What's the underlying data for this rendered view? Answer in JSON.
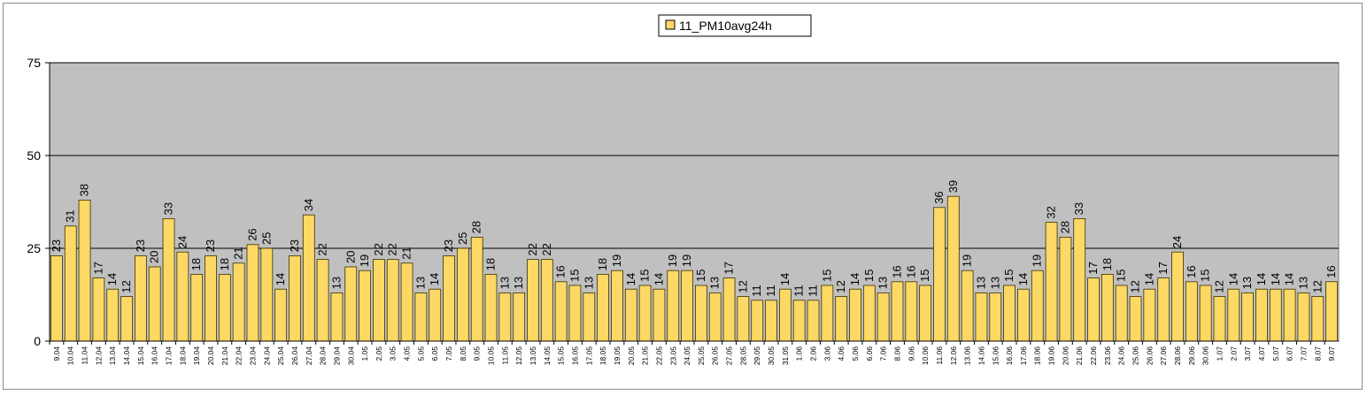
{
  "chart_data": {
    "type": "bar",
    "title": "",
    "xlabel": "",
    "ylabel": "",
    "ylim": [
      0,
      75
    ],
    "yticks": [
      0,
      25,
      50,
      75
    ],
    "grid": true,
    "legend_position": "top-center",
    "colors": {
      "bar_fill": "#FCD864",
      "bar_stroke": "#3a3000",
      "plot_bg": "#C0C0C0",
      "gridline": "#000000"
    },
    "categories": [
      "9.04",
      "10.04",
      "11.04",
      "12.04",
      "13.04",
      "14.04",
      "15.04",
      "16.04",
      "17.04",
      "18.04",
      "19.04",
      "20.04",
      "21.04",
      "22.04",
      "23.04",
      "24.04",
      "25.04",
      "26.04",
      "27.04",
      "28.04",
      "29.04",
      "30.04",
      "1.05",
      "2.05",
      "3.05",
      "4.05",
      "5.05",
      "6.05",
      "7.05",
      "8.05",
      "9.05",
      "10.05",
      "11.05",
      "12.05",
      "13.05",
      "14.05",
      "15.05",
      "16.05",
      "17.05",
      "18.05",
      "19.05",
      "20.05",
      "21.05",
      "22.05",
      "23.05",
      "24.05",
      "25.05",
      "26.05",
      "27.05",
      "28.05",
      "29.05",
      "30.05",
      "31.05",
      "1.06",
      "2.06",
      "3.06",
      "4.06",
      "5.06",
      "6.06",
      "7.06",
      "8.06",
      "9.06",
      "10.06",
      "11.06",
      "12.06",
      "13.06",
      "14.06",
      "15.06",
      "16.06",
      "17.06",
      "18.06",
      "19.06",
      "20.06",
      "21.06",
      "22.06",
      "23.06",
      "24.06",
      "25.06",
      "26.06",
      "27.06",
      "28.06",
      "29.06",
      "30.06",
      "1.07",
      "2.07",
      "3.07",
      "4.07",
      "5.07",
      "6.07",
      "7.07",
      "8.07",
      "9.07"
    ],
    "series": [
      {
        "name": "11_PM10avg24h",
        "values": [
          23,
          31,
          38,
          17,
          14,
          12,
          23,
          20,
          33,
          24,
          18,
          23,
          18,
          21,
          26,
          25,
          14,
          23,
          34,
          22,
          13,
          20,
          19,
          22,
          22,
          21,
          13,
          14,
          23,
          25,
          28,
          18,
          13,
          13,
          22,
          22,
          16,
          15,
          13,
          18,
          19,
          14,
          15,
          14,
          19,
          19,
          15,
          13,
          17,
          12,
          11,
          11,
          14,
          11,
          11,
          15,
          12,
          14,
          15,
          13,
          16,
          16,
          15,
          36,
          39,
          19,
          13,
          13,
          15,
          14,
          19,
          32,
          28,
          33,
          17,
          18,
          15,
          12,
          14,
          17,
          24,
          16,
          15,
          12,
          14,
          13,
          14,
          14,
          14,
          13,
          12,
          16
        ]
      }
    ]
  }
}
